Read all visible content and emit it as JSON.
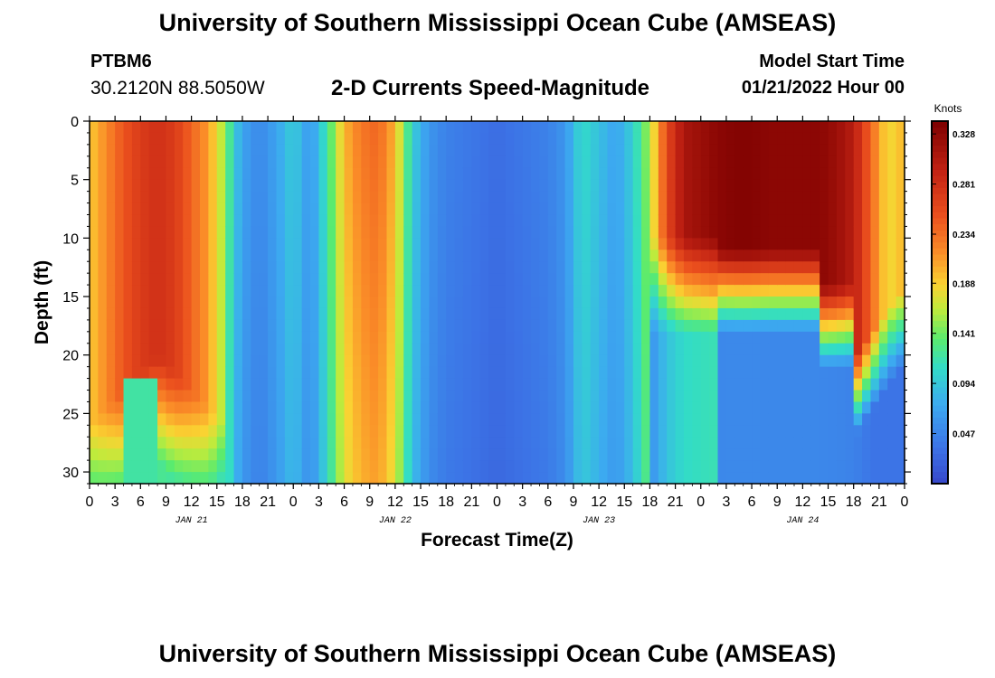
{
  "header": {
    "title": "University of Southern Mississippi Ocean Cube (AMSEAS)",
    "station_id": "PTBM6",
    "coordinates": "30.2120N  88.5050W",
    "plot_title": "2-D Currents Speed-Magnitude",
    "model_start_label": "Model Start Time",
    "model_start_value": "01/21/2022 Hour 00"
  },
  "footer": {
    "title": "University of Southern Mississippi Ocean Cube (AMSEAS)"
  },
  "chart_data": {
    "type": "heatmap",
    "title": "2-D Currents Speed-Magnitude",
    "xlabel": "Forecast Time(Z)",
    "ylabel": "Depth (ft)",
    "x_range_hours": [
      0,
      96
    ],
    "y_range_ft": [
      0,
      31
    ],
    "y_ticks": [
      0,
      5,
      10,
      15,
      20,
      25,
      30
    ],
    "x_tick_labels": [
      "0",
      "3",
      "6",
      "9",
      "12",
      "15",
      "18",
      "21",
      "0",
      "3",
      "6",
      "9",
      "12",
      "15",
      "18",
      "21",
      "0",
      "3",
      "6",
      "9",
      "12",
      "15",
      "18",
      "21",
      "0",
      "3",
      "6",
      "9",
      "12",
      "15",
      "18",
      "21",
      "0"
    ],
    "date_labels": [
      "JAN 21",
      "JAN 22",
      "JAN 23",
      "JAN 24"
    ],
    "colorbar": {
      "unit": "Knots",
      "min": 0.0,
      "max": 0.34,
      "tick_values": [
        0.047,
        0.094,
        0.141,
        0.188,
        0.234,
        0.281,
        0.328
      ],
      "tick_labels": [
        "0.047",
        "0.094",
        "0.141",
        "0.188",
        "0.234",
        "0.281",
        "0.328"
      ]
    },
    "surface_speed_profile": {
      "hours": [
        0,
        2,
        4,
        6,
        8,
        10,
        12,
        14,
        16,
        17,
        18,
        20,
        22,
        24,
        26,
        28,
        30,
        32,
        34,
        36,
        38,
        40,
        42,
        44,
        46,
        48,
        50,
        52,
        54,
        56,
        58,
        60,
        62,
        64,
        66,
        68,
        70,
        72,
        74,
        76,
        78,
        80,
        82,
        84,
        86,
        88,
        90,
        92,
        94,
        96
      ],
      "speed_knots": [
        0.19,
        0.22,
        0.25,
        0.27,
        0.28,
        0.27,
        0.24,
        0.21,
        0.15,
        0.1,
        0.07,
        0.05,
        0.07,
        0.1,
        0.06,
        0.12,
        0.2,
        0.23,
        0.24,
        0.2,
        0.1,
        0.06,
        0.045,
        0.04,
        0.035,
        0.03,
        0.035,
        0.04,
        0.045,
        0.06,
        0.11,
        0.09,
        0.07,
        0.1,
        0.16,
        0.26,
        0.31,
        0.32,
        0.33,
        0.335,
        0.335,
        0.33,
        0.33,
        0.33,
        0.33,
        0.32,
        0.3,
        0.24,
        0.18,
        0.2
      ]
    }
  }
}
